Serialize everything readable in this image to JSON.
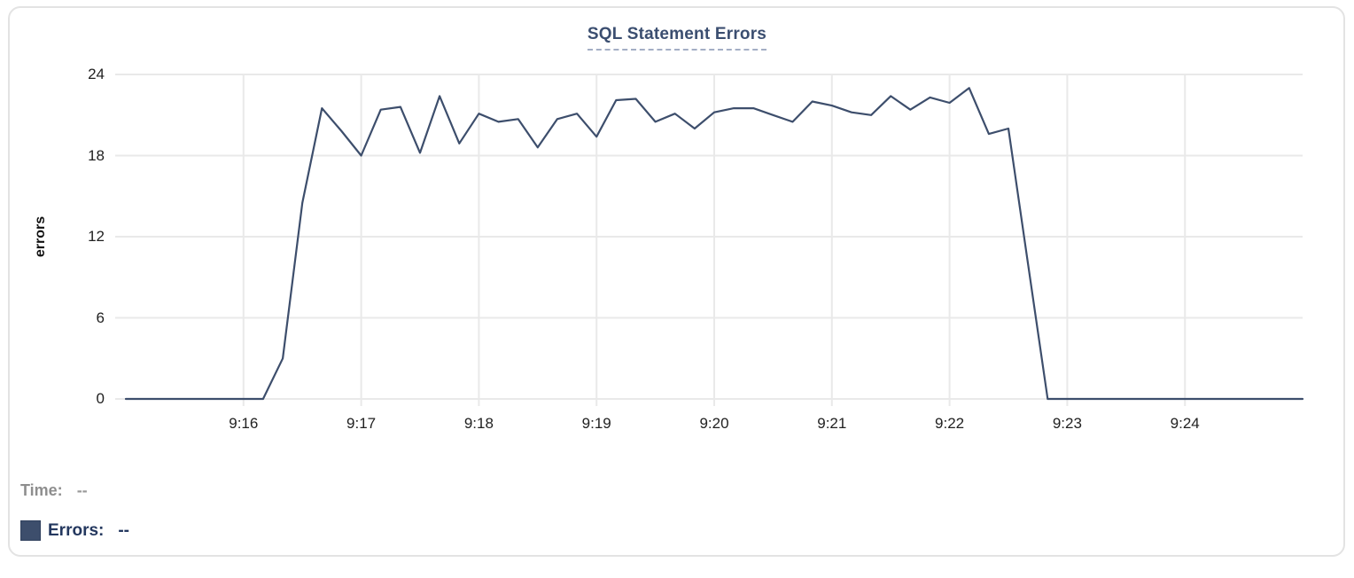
{
  "header": {
    "title": "SQL Statement Errors"
  },
  "legend": {
    "time_label": "Time:",
    "time_value": "--",
    "errors_label": "Errors:",
    "errors_value": "--",
    "swatch_icon": "square-swatch-icon",
    "swatch_color": "#3d4e6c"
  },
  "colors": {
    "line": "#3d4e6c",
    "grid": "#e9e9e9",
    "title": "#3b4e70",
    "card_border": "#e3e3e3"
  },
  "chart_data": {
    "type": "line",
    "title": "SQL Statement Errors",
    "xlabel": "",
    "ylabel": "errors",
    "series_name": "Errors",
    "legend_position": "bottom-left",
    "grid": true,
    "ylim": [
      0,
      24
    ],
    "y_ticks": [
      0,
      6,
      12,
      18,
      24
    ],
    "x_tick_labels": [
      "9:16",
      "9:17",
      "9:18",
      "9:19",
      "9:20",
      "9:21",
      "9:22",
      "9:23",
      "9:24"
    ],
    "x_start": "9:15:00",
    "x_end": "9:25:00",
    "x_interval_seconds": 10,
    "values": [
      0,
      0,
      0,
      0,
      0,
      0,
      0,
      0,
      3,
      14.5,
      21.5,
      19.8,
      18,
      21.4,
      21.6,
      18.2,
      22.4,
      18.9,
      21.1,
      20.5,
      20.7,
      18.6,
      20.7,
      21.1,
      19.4,
      22.1,
      22.2,
      20.5,
      21.1,
      20,
      21.2,
      21.5,
      21.5,
      21,
      20.5,
      22,
      21.7,
      21.2,
      21,
      22.4,
      21.4,
      22.3,
      21.9,
      23,
      19.6,
      20,
      10,
      0,
      0,
      0,
      0,
      0,
      0,
      0,
      0,
      0,
      0,
      0,
      0,
      0,
      0
    ]
  }
}
